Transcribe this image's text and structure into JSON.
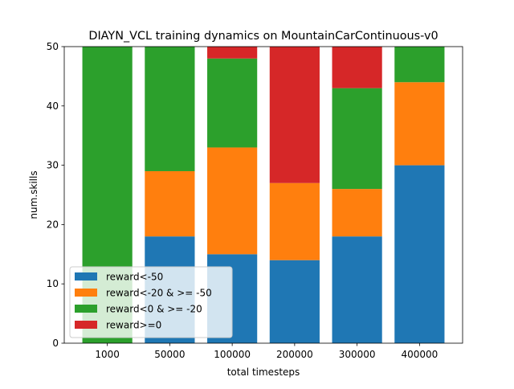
{
  "chart_data": {
    "type": "bar",
    "stacked": true,
    "title": "DIAYN_VCL training dynamics on MountainCarContinuous-v0",
    "xlabel": "total timesteps",
    "ylabel": "num.skills",
    "categories": [
      "1000",
      "50000",
      "100000",
      "200000",
      "300000",
      "400000"
    ],
    "ylim": [
      0,
      50
    ],
    "yticks": [
      "0",
      "10",
      "20",
      "30",
      "40",
      "50"
    ],
    "grid": false,
    "legend_position": "lower-left",
    "series": [
      {
        "name": "reward<-50",
        "color": "#1f77b4",
        "values": [
          0,
          18,
          15,
          14,
          18,
          30
        ]
      },
      {
        "name": "reward<-20 & >= -50",
        "color": "#ff7f0e",
        "values": [
          0,
          11,
          18,
          13,
          8,
          14
        ]
      },
      {
        "name": "reward<0 & >= -20",
        "color": "#2ca02c",
        "values": [
          50,
          21,
          15,
          0,
          17,
          6
        ]
      },
      {
        "name": "reward>=0",
        "color": "#d62728",
        "values": [
          0,
          0,
          2,
          23,
          7,
          0
        ]
      }
    ]
  }
}
